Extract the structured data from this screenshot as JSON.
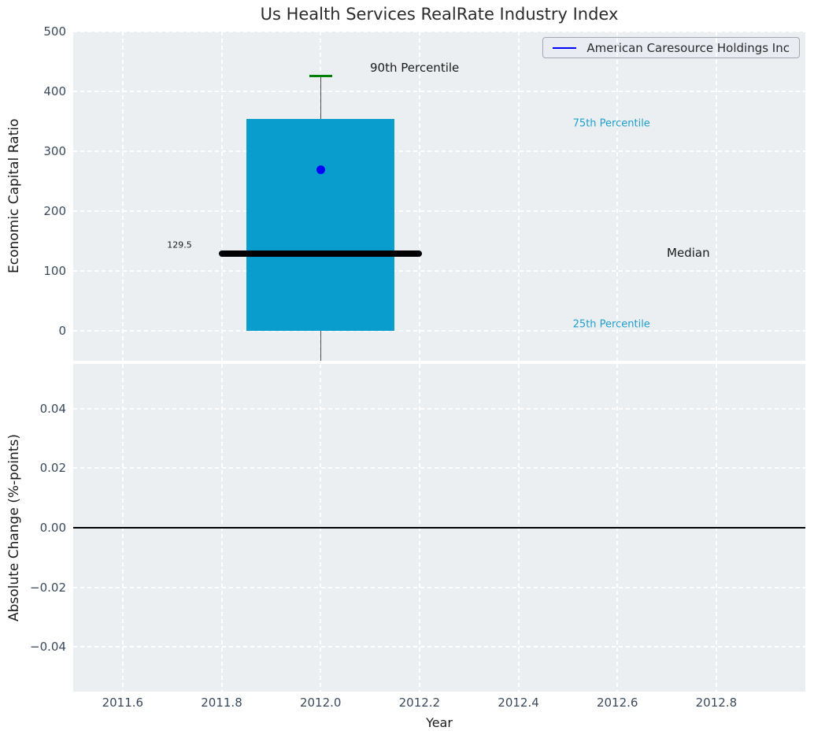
{
  "legend": {
    "label": "American Caresource Holdings Inc",
    "line_color": "#0000ff"
  },
  "colors": {
    "panel_background": "#ECEFF1",
    "grid": "#ffffff",
    "box_fill": "#089DCD",
    "median_line": "#000000",
    "percentile_cap": "#008000",
    "company_dot": "#0000ff",
    "tick_label": "#3a4a5c",
    "percentile_text": "#1E9FCE"
  },
  "chart_data": {
    "type": "box",
    "title": "Us Health Services RealRate Industry Index",
    "xlabel": "Year",
    "xlim": [
      2011.5,
      2012.98
    ],
    "x_ticks": [
      2011.6,
      2011.8,
      2012.0,
      2012.2,
      2012.4,
      2012.6,
      2012.8
    ],
    "x_tick_labels": [
      "2011.6",
      "2011.8",
      "2012.0",
      "2012.2",
      "2012.4",
      "2012.6",
      "2012.8"
    ],
    "grid": "white dashed on light gray",
    "legend_position": "upper right",
    "panels": [
      {
        "ylabel": "Economic Capital Ratio",
        "ylim": [
          -50,
          500
        ],
        "y_ticks": [
          0,
          100,
          200,
          300,
          400,
          500
        ],
        "y_tick_labels": [
          "0",
          "100",
          "200",
          "300",
          "400",
          "500"
        ],
        "series": {
          "name": "American Caresource Holdings Inc",
          "x": 2012.0,
          "q1": 0,
          "median": 129.5,
          "q3": 354,
          "p90": 426,
          "company_value": 269,
          "box_halfwidth": 0.15,
          "median_halfwidth": 0.205,
          "cap_halfwidth": 0.023,
          "whisker_clipped_below_axis": true
        },
        "annotations": [
          {
            "text": "90th Percentile",
            "x": 2012.1,
            "y": 439,
            "ha": "left",
            "size": 15,
            "color": "#1a1a1a",
            "name": "annotation-90th-percentile"
          },
          {
            "text": "75th Percentile",
            "x": 2012.51,
            "y": 346,
            "ha": "left",
            "size": 13,
            "color": "#1E9FCE",
            "name": "annotation-75th-percentile"
          },
          {
            "text": "Median",
            "x": 2012.7,
            "y": 130,
            "ha": "left",
            "size": 15,
            "color": "#1a1a1a",
            "name": "annotation-median"
          },
          {
            "text": "129.5",
            "x": 2011.74,
            "y": 144,
            "ha": "right",
            "size": 11,
            "color": "#1a1a1a",
            "name": "annotation-median-value"
          },
          {
            "text": "25th Percentile",
            "x": 2012.51,
            "y": 10,
            "ha": "left",
            "size": 13,
            "color": "#1E9FCE",
            "name": "annotation-25th-percentile"
          }
        ]
      },
      {
        "ylabel": "Absolute Change (%-points)",
        "ylim": [
          -0.055,
          0.055
        ],
        "y_ticks": [
          0.04,
          0.02,
          0.0,
          -0.02,
          -0.04
        ],
        "y_tick_labels": [
          "0.04",
          "0.02",
          "0.00",
          "−0.02",
          "−0.04"
        ],
        "zero_line": 0.0
      }
    ]
  }
}
